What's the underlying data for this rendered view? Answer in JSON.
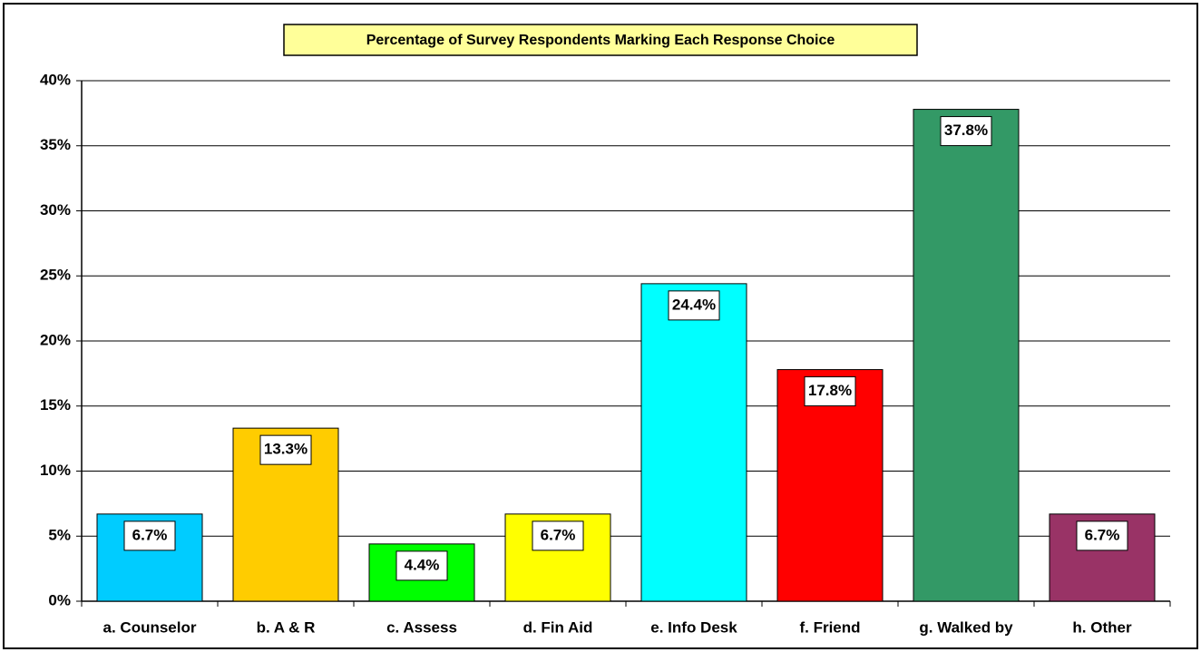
{
  "chart_data": {
    "type": "bar",
    "title": "Percentage of Survey Respondents Marking Each Response Choice",
    "categories": [
      "a. Counselor",
      "b. A & R",
      "c. Assess",
      "d. Fin Aid",
      "e. Info Desk",
      "f. Friend",
      "g. Walked by",
      "h. Other"
    ],
    "values": [
      6.7,
      13.3,
      4.4,
      6.7,
      24.4,
      17.8,
      37.8,
      6.7
    ],
    "value_labels": [
      "6.7%",
      "13.3%",
      "4.4%",
      "6.7%",
      "24.4%",
      "17.8%",
      "37.8%",
      "6.7%"
    ],
    "colors": [
      "#00ccff",
      "#ffcc00",
      "#00ff00",
      "#ffff00",
      "#00ffff",
      "#ff0000",
      "#339966",
      "#993366"
    ],
    "ylim": [
      0,
      40
    ],
    "yticks": [
      {
        "value": 0,
        "label": "0%"
      },
      {
        "value": 5,
        "label": "5%"
      },
      {
        "value": 10,
        "label": "10%"
      },
      {
        "value": 15,
        "label": "15%"
      },
      {
        "value": 20,
        "label": "20%"
      },
      {
        "value": 25,
        "label": "25%"
      },
      {
        "value": 30,
        "label": "30%"
      },
      {
        "value": 35,
        "label": "35%"
      },
      {
        "value": 40,
        "label": "40%"
      }
    ],
    "grid": true
  }
}
